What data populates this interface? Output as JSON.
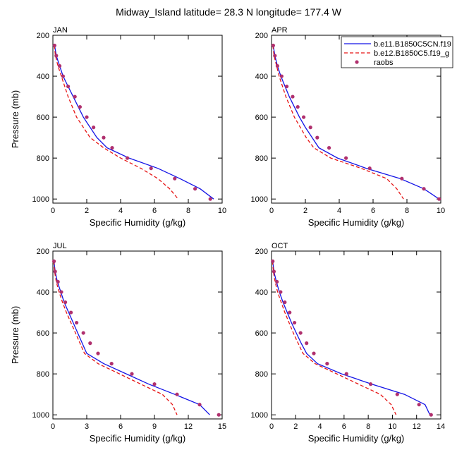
{
  "title": "Midway_Island  latitude= 28.3 N longitude= 177.4 W",
  "legend": {
    "items": [
      {
        "label": "b.e11.B1850C5CN.f19",
        "color": "#1414e6",
        "style": "solid"
      },
      {
        "label": "b.e12.B1850C5.f19_g",
        "color": "#e61414",
        "style": "dashed"
      },
      {
        "label": "raobs",
        "color": "#b0306e",
        "style": "marker"
      }
    ]
  },
  "chart_data": [
    {
      "type": "line",
      "panel": "JAN",
      "xlabel": "Specific Humidity (g/kg)",
      "ylabel": "Pressure (mb)",
      "xlim": [
        0,
        10
      ],
      "ylim": [
        1020,
        200
      ],
      "xticks": [
        0,
        2,
        4,
        6,
        8,
        10
      ],
      "yticks": [
        200,
        400,
        600,
        800,
        1000
      ],
      "pressure": [
        250,
        300,
        350,
        400,
        450,
        500,
        550,
        600,
        650,
        700,
        750,
        800,
        850,
        900,
        950,
        1000
      ],
      "series": [
        {
          "name": "b.e11.B1850C5CN.f19",
          "values": [
            0.1,
            0.2,
            0.4,
            0.6,
            0.9,
            1.2,
            1.5,
            1.8,
            2.2,
            2.6,
            3.2,
            4.5,
            6.2,
            7.5,
            8.7,
            9.5
          ]
        },
        {
          "name": "b.e12.B1850C5.f19_g",
          "values": [
            0.08,
            0.15,
            0.3,
            0.5,
            0.7,
            0.9,
            1.15,
            1.4,
            1.8,
            2.2,
            3.0,
            4.0,
            5.2,
            6.2,
            6.9,
            7.4
          ]
        },
        {
          "name": "raobs",
          "values": [
            0.1,
            0.2,
            0.4,
            0.6,
            0.9,
            1.3,
            1.6,
            2.0,
            2.4,
            3.0,
            3.5,
            4.4,
            5.8,
            7.2,
            8.4,
            9.3
          ]
        }
      ]
    },
    {
      "type": "line",
      "panel": "APR",
      "xlabel": "Specific Humidity (g/kg)",
      "ylabel": "",
      "xlim": [
        0,
        10
      ],
      "ylim": [
        1020,
        200
      ],
      "xticks": [
        0,
        2,
        4,
        6,
        8,
        10
      ],
      "yticks": [
        200,
        400,
        600,
        800,
        1000
      ],
      "pressure": [
        250,
        300,
        350,
        400,
        450,
        500,
        550,
        600,
        650,
        700,
        750,
        800,
        850,
        900,
        950,
        1000
      ],
      "series": [
        {
          "name": "b.e11.B1850C5CN.f19",
          "values": [
            0.1,
            0.2,
            0.35,
            0.55,
            0.8,
            1.05,
            1.35,
            1.65,
            2.0,
            2.4,
            2.8,
            3.9,
            5.6,
            7.6,
            9.0,
            9.9
          ]
        },
        {
          "name": "b.e12.B1850C5.f19_g",
          "values": [
            0.08,
            0.15,
            0.3,
            0.45,
            0.65,
            0.85,
            1.1,
            1.35,
            1.7,
            2.05,
            2.5,
            3.5,
            5.3,
            6.8,
            7.4,
            7.8
          ]
        },
        {
          "name": "raobs",
          "values": [
            0.1,
            0.2,
            0.35,
            0.6,
            0.9,
            1.25,
            1.55,
            1.9,
            2.3,
            2.7,
            3.4,
            4.4,
            5.8,
            7.7,
            9.0,
            9.9
          ]
        }
      ]
    },
    {
      "type": "line",
      "panel": "JUL",
      "xlabel": "Specific Humidity (g/kg)",
      "ylabel": "Pressure (mb)",
      "xlim": [
        0,
        15
      ],
      "ylim": [
        1020,
        200
      ],
      "xticks": [
        0,
        3,
        6,
        9,
        12,
        15
      ],
      "yticks": [
        200,
        400,
        600,
        800,
        1000
      ],
      "pressure": [
        250,
        300,
        350,
        400,
        450,
        500,
        550,
        600,
        650,
        700,
        750,
        800,
        850,
        900,
        950,
        1000
      ],
      "series": [
        {
          "name": "b.e11.B1850C5CN.f19",
          "values": [
            0.1,
            0.2,
            0.4,
            0.7,
            1.0,
            1.4,
            1.8,
            2.2,
            2.6,
            3.0,
            4.5,
            6.5,
            8.5,
            10.8,
            13.0,
            13.9
          ]
        },
        {
          "name": "b.e12.B1850C5.f19_g",
          "values": [
            0.08,
            0.15,
            0.3,
            0.55,
            0.85,
            1.2,
            1.6,
            2.0,
            2.4,
            2.8,
            4.0,
            5.9,
            7.8,
            9.7,
            10.6,
            11.0
          ]
        },
        {
          "name": "raobs",
          "values": [
            0.1,
            0.2,
            0.45,
            0.75,
            1.1,
            1.6,
            2.1,
            2.7,
            3.3,
            4.0,
            5.2,
            7.0,
            9.0,
            11.0,
            13.0,
            14.7
          ]
        }
      ]
    },
    {
      "type": "line",
      "panel": "OCT",
      "xlabel": "Specific Humidity (g/kg)",
      "ylabel": "",
      "xlim": [
        0,
        14
      ],
      "ylim": [
        1020,
        200
      ],
      "xticks": [
        0,
        2,
        4,
        6,
        8,
        10,
        12,
        14
      ],
      "yticks": [
        200,
        400,
        600,
        800,
        1000
      ],
      "pressure": [
        250,
        300,
        350,
        400,
        450,
        500,
        550,
        600,
        650,
        700,
        750,
        800,
        850,
        900,
        950,
        1000
      ],
      "series": [
        {
          "name": "b.e11.B1850C5CN.f19",
          "values": [
            0.1,
            0.2,
            0.4,
            0.65,
            0.95,
            1.3,
            1.65,
            2.05,
            2.45,
            2.9,
            3.8,
            5.8,
            8.3,
            11.0,
            12.7,
            13.1
          ]
        },
        {
          "name": "b.e12.B1850C5.f19_g",
          "values": [
            0.08,
            0.15,
            0.3,
            0.5,
            0.8,
            1.1,
            1.45,
            1.8,
            2.2,
            2.6,
            3.6,
            5.4,
            7.2,
            9.0,
            9.9,
            10.3
          ]
        },
        {
          "name": "raobs",
          "values": [
            0.1,
            0.2,
            0.45,
            0.75,
            1.1,
            1.5,
            1.9,
            2.4,
            2.9,
            3.5,
            4.6,
            6.2,
            8.2,
            10.4,
            12.2,
            13.2
          ]
        }
      ]
    }
  ]
}
